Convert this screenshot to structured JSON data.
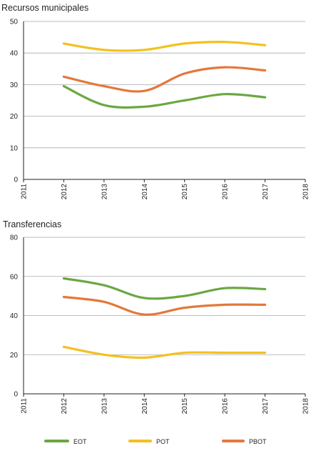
{
  "colors": {
    "EOT": "#6aa842",
    "POT": "#f4c01e",
    "PBOT": "#e4783a"
  },
  "legend": [
    {
      "name": "EOT",
      "color_key": "EOT"
    },
    {
      "name": "POT",
      "color_key": "POT"
    },
    {
      "name": "PBOT",
      "color_key": "PBOT"
    }
  ],
  "chart_data": [
    {
      "type": "line",
      "title": "Recursos municipales",
      "x": [
        2012,
        2013,
        2014,
        2015,
        2016,
        2017
      ],
      "xticks": [
        "2011",
        "2012",
        "2013",
        "2014",
        "2015",
        "2016",
        "2017",
        "2018"
      ],
      "xlim": [
        2011,
        2018
      ],
      "ylim": [
        0,
        50
      ],
      "yticks": [
        "0",
        "10",
        "20",
        "30",
        "40",
        "50"
      ],
      "grid": true,
      "series": [
        {
          "name": "EOT",
          "values": [
            29.5,
            23.5,
            23,
            25,
            27,
            26
          ]
        },
        {
          "name": "POT",
          "values": [
            43,
            41,
            41,
            43,
            43.5,
            42.5
          ]
        },
        {
          "name": "PBOT",
          "values": [
            32.5,
            29.5,
            28,
            33.5,
            35.5,
            34.5
          ]
        }
      ]
    },
    {
      "type": "line",
      "title": "Transferencias",
      "x": [
        2012,
        2013,
        2014,
        2015,
        2016,
        2017
      ],
      "xticks": [
        "2011",
        "2012",
        "2013",
        "2014",
        "2015",
        "2016",
        "2017",
        "2018"
      ],
      "xlim": [
        2011,
        2018
      ],
      "ylim": [
        0,
        80
      ],
      "yticks": [
        "0",
        "20",
        "40",
        "60",
        "80"
      ],
      "grid": true,
      "series": [
        {
          "name": "EOT",
          "values": [
            59,
            55.5,
            49,
            50,
            54,
            53.5
          ]
        },
        {
          "name": "POT",
          "values": [
            24,
            20,
            18.5,
            21,
            21,
            21
          ]
        },
        {
          "name": "PBOT",
          "values": [
            49.5,
            47,
            40.5,
            44,
            45.5,
            45.5
          ]
        }
      ]
    }
  ]
}
